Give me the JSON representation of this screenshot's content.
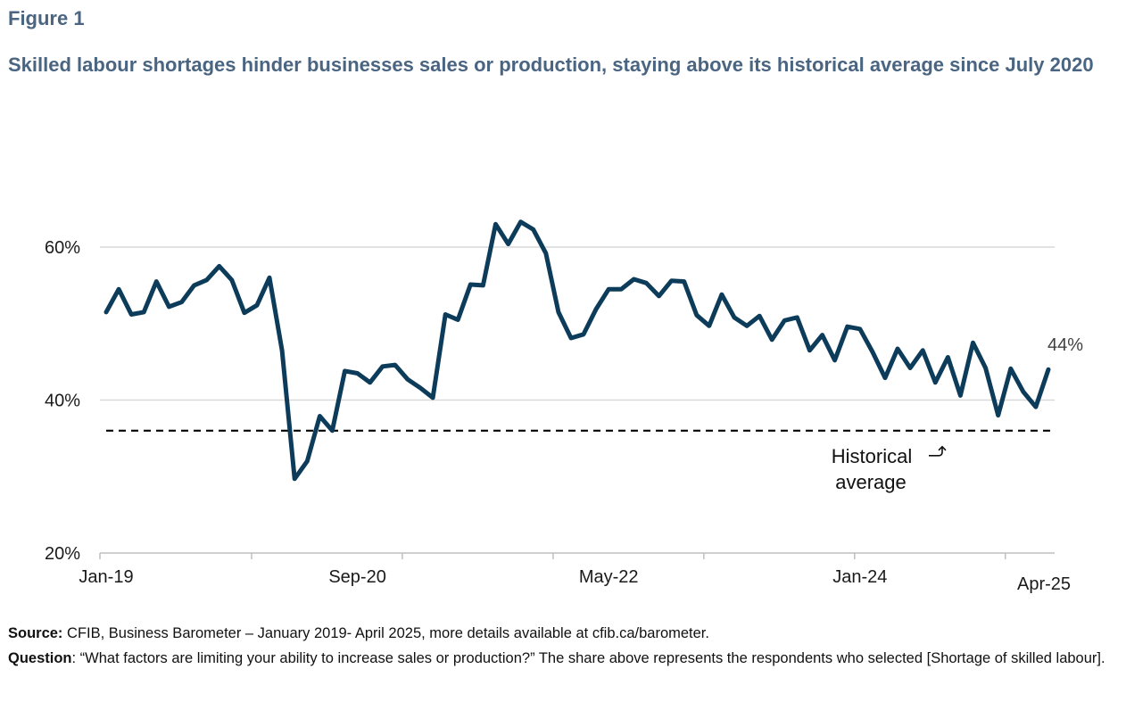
{
  "figure_label": "Figure 1",
  "title": "Skilled labour shortages hinder businesses sales or production, staying above its historical average since July 2020",
  "source_label": "Source:",
  "source_text": " CFIB, Business Barometer – January 2019- April 2025, more details available at cfib.ca/barometer.",
  "question_label": "Question",
  "question_text": ": “What factors are limiting your ability to increase sales or production?” The share above represents the respondents who selected [Shortage of skilled labour].",
  "colors": {
    "line": "#0d3c5a",
    "grid": "#d9d9d9",
    "axis": "#bfbfbf",
    "avg": "#000000"
  },
  "chart_data": {
    "type": "line",
    "title": "",
    "xlabel": "",
    "ylabel": "",
    "ylim": [
      20,
      60
    ],
    "yticks": [
      "20%",
      "40%",
      "60%"
    ],
    "xtick_labels": [
      "Jan-19",
      "Sep-20",
      "May-22",
      "Jan-24",
      "Apr-25"
    ],
    "grid": "horizontal",
    "last_value_label": "44%",
    "historical_average": 36,
    "historical_average_label_line1": "Historical",
    "historical_average_label_line2": "average",
    "series": [
      {
        "values": [
          51.5,
          54.5,
          51.2,
          51.5,
          55.5,
          52.2,
          52.8,
          55.0,
          55.7,
          57.5,
          55.7,
          51.4,
          52.4,
          56.0,
          46.5,
          29.7,
          32.0,
          37.9,
          36.0,
          43.8,
          43.5,
          42.3,
          44.4,
          44.6,
          42.7,
          41.6,
          40.3,
          51.2,
          50.5,
          55.1,
          55.0,
          63.0,
          60.4,
          63.3,
          62.3,
          59.2,
          51.5,
          48.1,
          48.6,
          51.9,
          54.5,
          54.5,
          55.8,
          55.3,
          53.6,
          55.6,
          55.5,
          51.1,
          49.7,
          53.8,
          50.8,
          49.7,
          51.0,
          47.9,
          50.4,
          50.8,
          46.5,
          48.5,
          45.2,
          49.6,
          49.3,
          46.3,
          42.9,
          46.7,
          44.2,
          46.5,
          42.3,
          45.6,
          40.6,
          47.5,
          44.2,
          38.0,
          44.1,
          41.1,
          39.1,
          44.0
        ]
      }
    ]
  }
}
